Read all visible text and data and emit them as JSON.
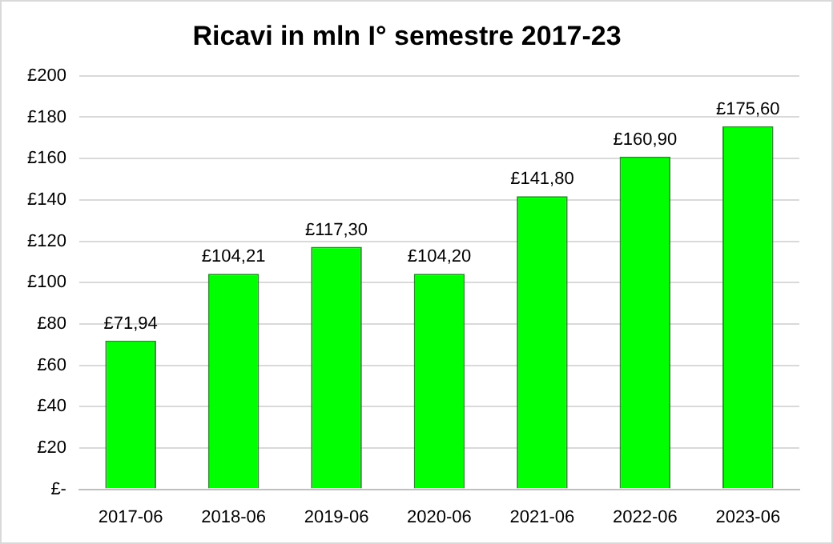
{
  "chart_data": {
    "type": "bar",
    "title": "Ricavi in mln I° semestre 2017-23",
    "categories": [
      "2017-06",
      "2018-06",
      "2019-06",
      "2020-06",
      "2021-06",
      "2022-06",
      "2023-06"
    ],
    "values": [
      71.94,
      104.21,
      117.3,
      104.2,
      141.8,
      160.9,
      175.6
    ],
    "value_labels": [
      "£71,94",
      "£104,21",
      "£117,30",
      "£104,20",
      "£141,80",
      "£160,90",
      "£175,60"
    ],
    "color": "#00ff00",
    "ylim": [
      0,
      200
    ],
    "yticks": [
      {
        "value": 0,
        "label": "£-"
      },
      {
        "value": 20,
        "label": "£20"
      },
      {
        "value": 40,
        "label": "£40"
      },
      {
        "value": 60,
        "label": "£60"
      },
      {
        "value": 80,
        "label": "£80"
      },
      {
        "value": 100,
        "label": "£100"
      },
      {
        "value": 120,
        "label": "£120"
      },
      {
        "value": 140,
        "label": "£140"
      },
      {
        "value": 160,
        "label": "£160"
      },
      {
        "value": 180,
        "label": "£180"
      },
      {
        "value": 200,
        "label": "£200"
      }
    ],
    "grid": "y"
  }
}
